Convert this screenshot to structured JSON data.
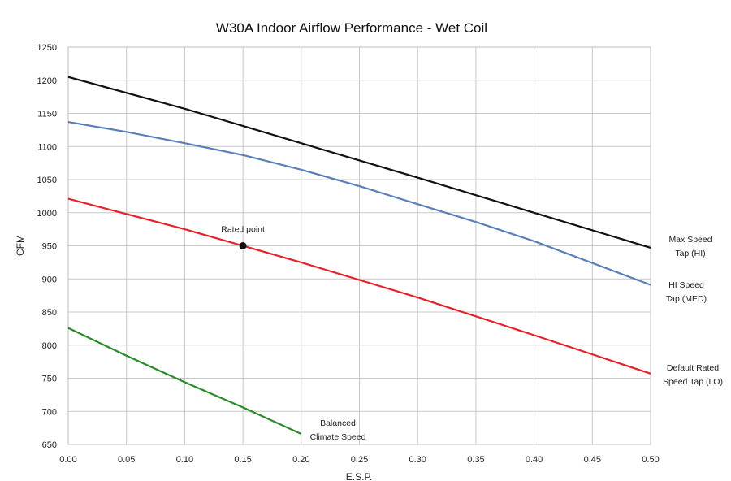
{
  "chart_data": {
    "type": "line",
    "title": "W30A   Indoor Airflow Performance - Wet Coil",
    "xlabel": "E.S.P.",
    "ylabel": "CFM",
    "xlim": [
      0.0,
      0.5
    ],
    "ylim": [
      650,
      1250
    ],
    "grid": true,
    "x_ticks": [
      "0.00",
      "0.05",
      "0.10",
      "0.15",
      "0.20",
      "0.25",
      "0.30",
      "0.35",
      "0.40",
      "0.45",
      "0.50"
    ],
    "y_ticks": [
      "650",
      "700",
      "750",
      "800",
      "850",
      "900",
      "950",
      "1000",
      "1050",
      "1100",
      "1150",
      "1200",
      "1250"
    ],
    "series": [
      {
        "label_lines": [
          "Max Speed",
          "Tap (HI)"
        ],
        "color": "#111111",
        "x": [
          0.0,
          0.1,
          0.2,
          0.3,
          0.4,
          0.5
        ],
        "values": [
          1205,
          1157,
          1105,
          1053,
          1000,
          947
        ]
      },
      {
        "label_lines": [
          "HI Speed",
          "Tap (MED)"
        ],
        "color": "#5b7fb8",
        "x": [
          0.0,
          0.05,
          0.1,
          0.15,
          0.2,
          0.25,
          0.3,
          0.35,
          0.4,
          0.45,
          0.5
        ],
        "values": [
          1137,
          1122,
          1105,
          1087,
          1065,
          1040,
          1013,
          986,
          957,
          924,
          891
        ]
      },
      {
        "label_lines": [
          "Default Rated",
          "Speed Tap (LO)"
        ],
        "color": "#e8202a",
        "x": [
          0.0,
          0.1,
          0.2,
          0.3,
          0.4,
          0.5
        ],
        "values": [
          1021,
          975,
          925,
          872,
          815,
          757
        ]
      },
      {
        "label_lines": [
          "Balanced",
          "Climate Speed"
        ],
        "color": "#2a8a2a",
        "x": [
          0.0,
          0.05,
          0.1,
          0.15,
          0.2
        ],
        "values": [
          826,
          784,
          744,
          706,
          666
        ]
      }
    ],
    "annotations": [
      {
        "text": "Rated point",
        "x": 0.15,
        "y": 950
      }
    ]
  }
}
